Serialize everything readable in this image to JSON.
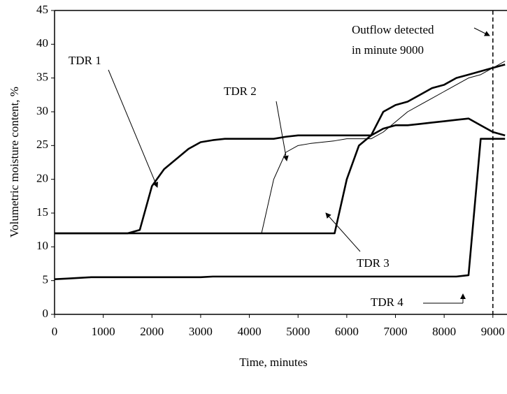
{
  "chart_data": {
    "type": "line",
    "x_label": "Time, minutes",
    "y_label": "Volumetric moisture content, %",
    "xlim": [
      0,
      9290
    ],
    "ylim": [
      0,
      45
    ],
    "xticks": [
      0,
      1000,
      2000,
      3000,
      4000,
      5000,
      6000,
      7000,
      8000,
      9000
    ],
    "yticks": [
      0,
      5,
      10,
      15,
      20,
      25,
      30,
      35,
      40,
      45
    ],
    "x": [
      0,
      250,
      500,
      750,
      1000,
      1250,
      1500,
      1750,
      2000,
      2250,
      2500,
      2750,
      3000,
      3250,
      3500,
      3750,
      4000,
      4250,
      4500,
      4750,
      5000,
      5250,
      5500,
      5750,
      6000,
      6250,
      6500,
      6750,
      7000,
      7250,
      7500,
      7750,
      8000,
      8250,
      8500,
      8750,
      9000,
      9250
    ],
    "series": [
      {
        "name": "TDR 1",
        "color": "#000000",
        "values": [
          12,
          12,
          12,
          12,
          12,
          12,
          12,
          12.5,
          19,
          21.5,
          23,
          24.5,
          25.5,
          25.8,
          26,
          26,
          26,
          26,
          26,
          26.3,
          26.5,
          26.5,
          26.5,
          26.5,
          26.5,
          26.5,
          26.5,
          30,
          31,
          31.5,
          32.5,
          33.5,
          34,
          35,
          35.5,
          36,
          36.5,
          37
        ]
      },
      {
        "name": "TDR 2",
        "color": "#000000",
        "values": [
          12,
          12,
          12,
          12,
          12,
          12,
          12,
          12,
          12,
          12,
          12,
          12,
          12,
          12,
          12,
          12,
          12,
          12,
          20,
          24,
          25,
          25.3,
          25.5,
          25.7,
          26,
          26,
          26,
          27,
          28.5,
          30,
          31,
          32,
          33,
          34,
          35,
          35.5,
          36.5,
          37.5
        ]
      },
      {
        "name": "TDR 3",
        "color": "#000000",
        "values": [
          12,
          12,
          12,
          12,
          12,
          12,
          12,
          12,
          12,
          12,
          12,
          12,
          12,
          12,
          12,
          12,
          12,
          12,
          12,
          12,
          12,
          12,
          12,
          12,
          20,
          25,
          26.5,
          27.5,
          28,
          28,
          28.2,
          28.4,
          28.6,
          28.8,
          29,
          28,
          27,
          26.5
        ]
      },
      {
        "name": "TDR 4",
        "color": "#000000",
        "values": [
          5.2,
          5.3,
          5.4,
          5.5,
          5.5,
          5.5,
          5.5,
          5.5,
          5.5,
          5.5,
          5.5,
          5.5,
          5.5,
          5.6,
          5.6,
          5.6,
          5.6,
          5.6,
          5.6,
          5.6,
          5.6,
          5.6,
          5.6,
          5.6,
          5.6,
          5.6,
          5.6,
          5.6,
          5.6,
          5.6,
          5.6,
          5.6,
          5.6,
          5.6,
          5.8,
          26,
          26,
          26
        ]
      }
    ],
    "event_x": 9000,
    "event_label": [
      "Outflow detected",
      "in minute 9000"
    ]
  }
}
